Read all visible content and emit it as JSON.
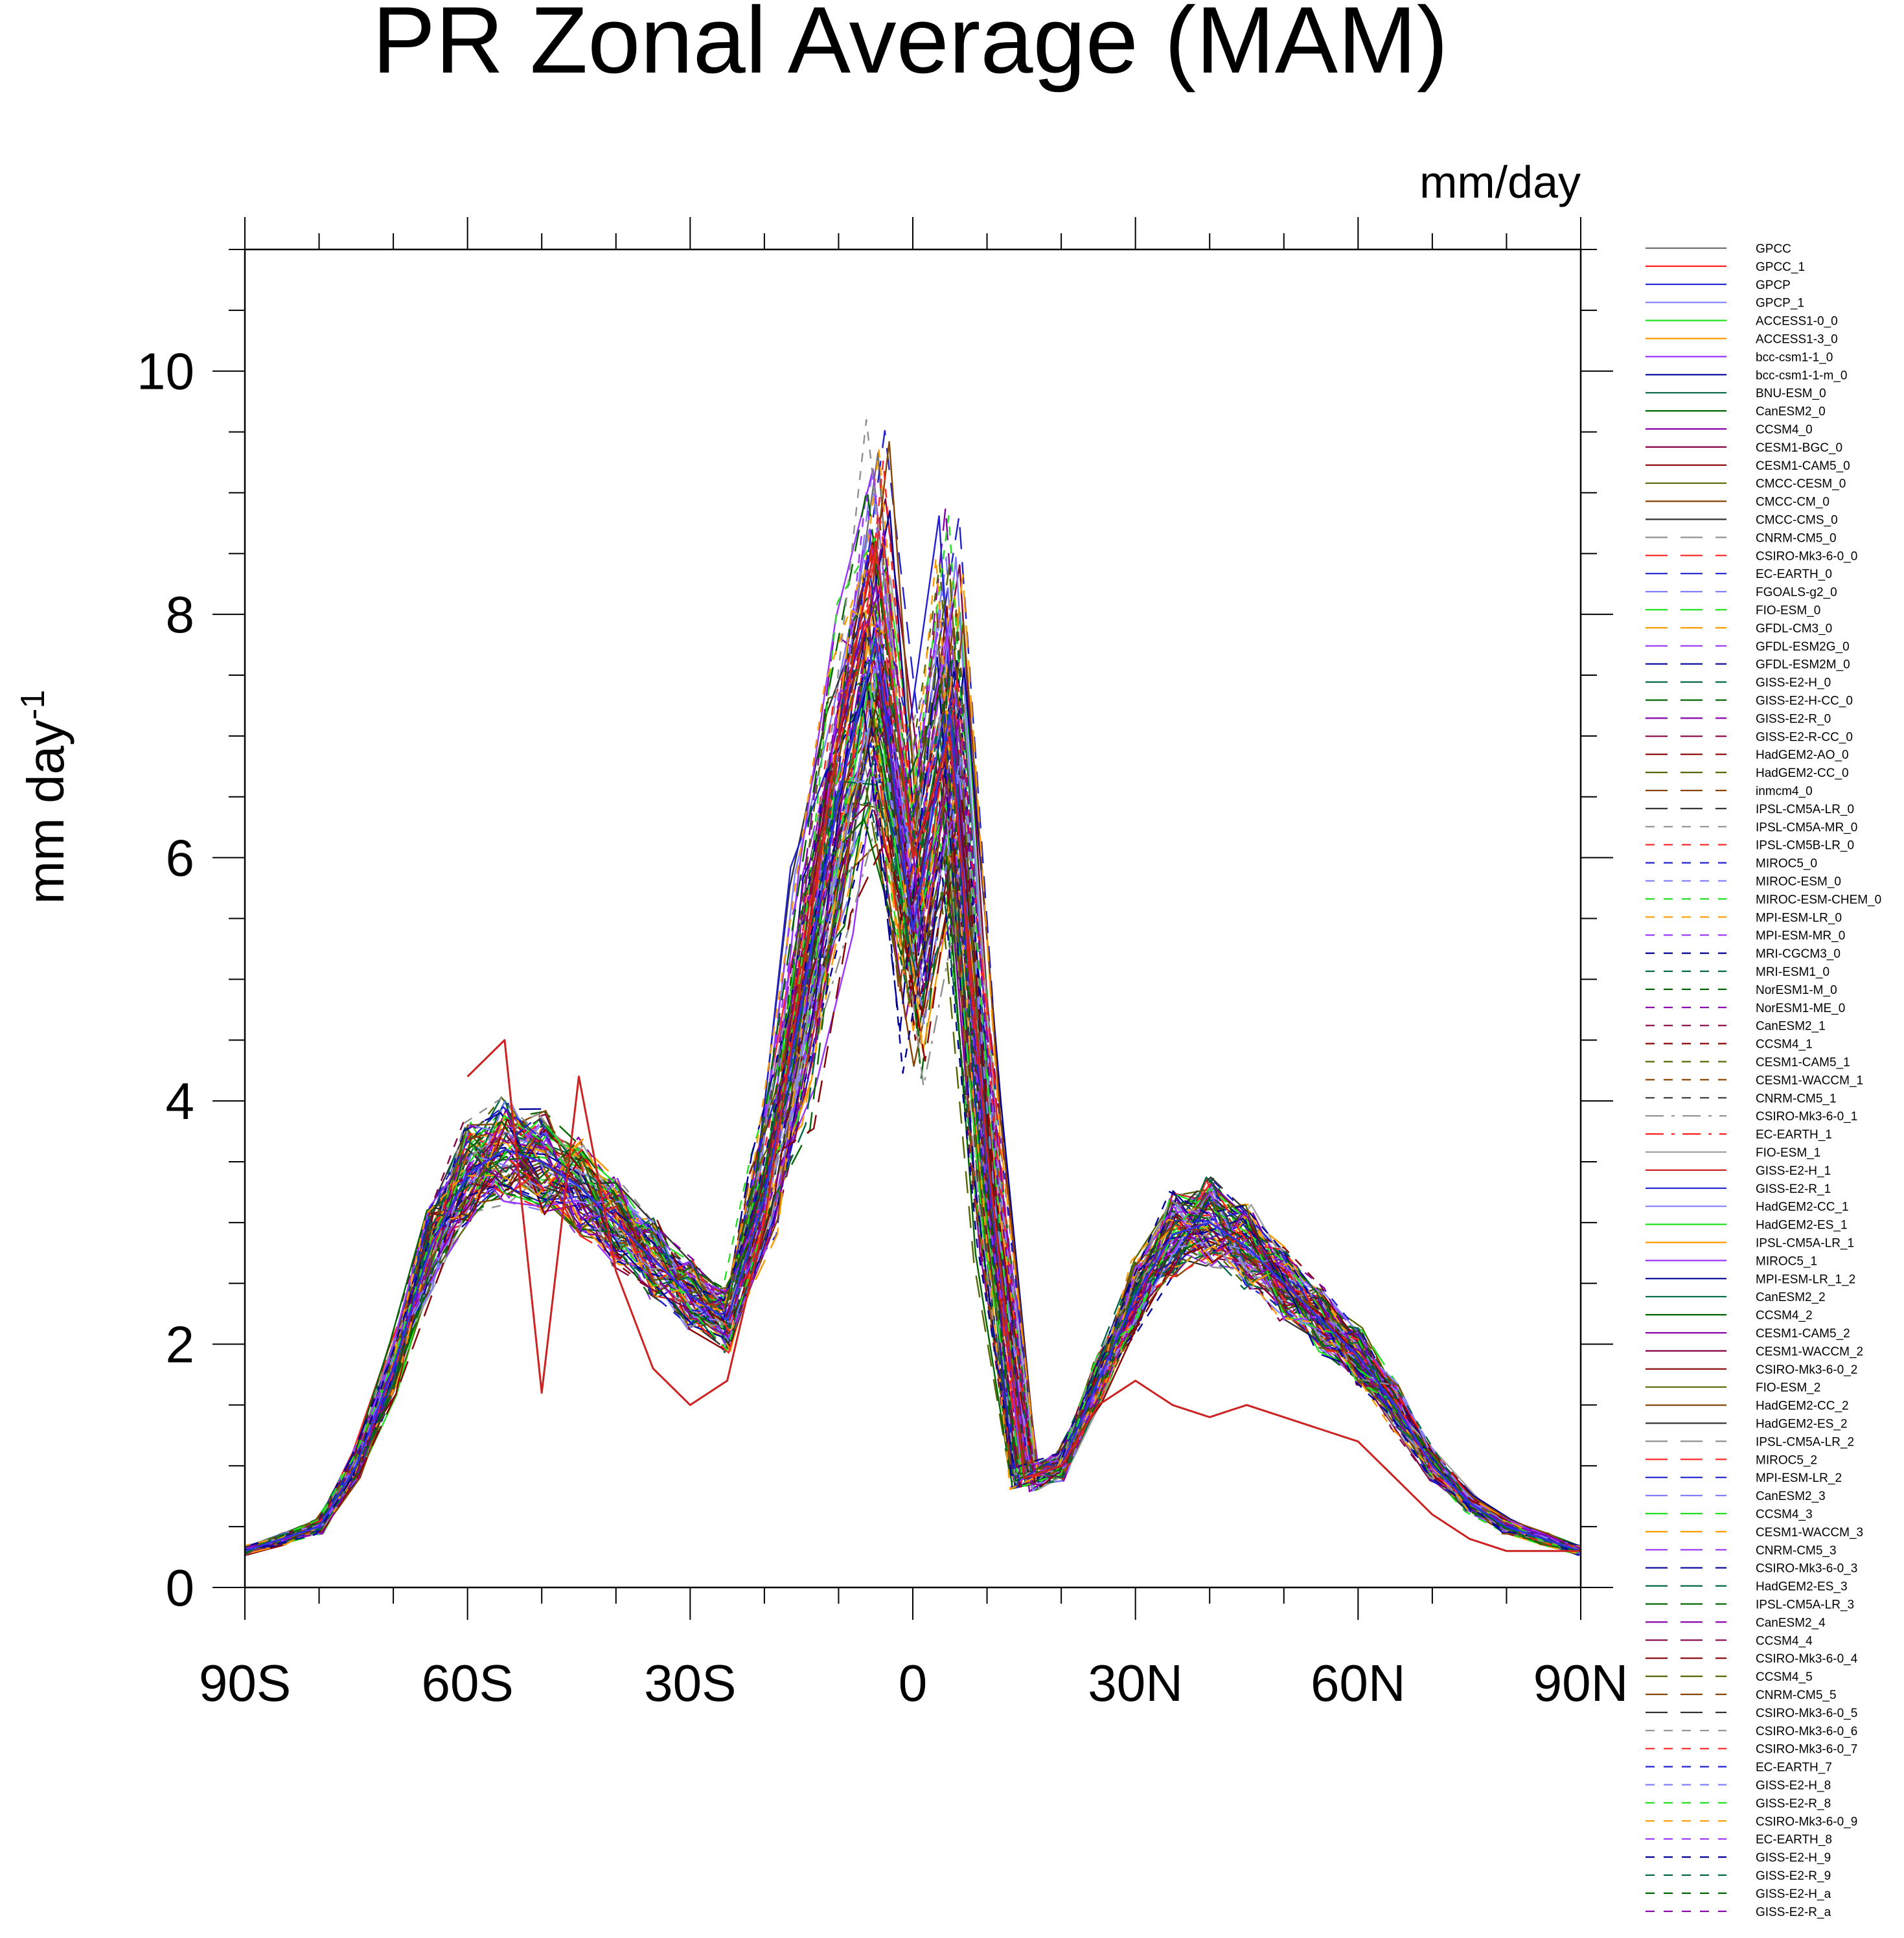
{
  "chart_data": {
    "type": "line",
    "title": "PR Zonal Average (MAM)",
    "units": "mm/day",
    "xlabel": "",
    "ylabel": "mm day",
    "ylabel_superscript": "-1",
    "xlim": [
      -90,
      90
    ],
    "ylim": [
      0,
      11
    ],
    "grid": false,
    "legend_position": "right",
    "x_ticks": [
      {
        "value": -90,
        "label": "90S"
      },
      {
        "value": -60,
        "label": "60S"
      },
      {
        "value": -30,
        "label": "30S"
      },
      {
        "value": 0,
        "label": "0"
      },
      {
        "value": 30,
        "label": "30N"
      },
      {
        "value": 60,
        "label": "60N"
      },
      {
        "value": 90,
        "label": "90N"
      }
    ],
    "y_ticks": [
      {
        "value": 0,
        "label": "0"
      },
      {
        "value": 2,
        "label": "2"
      },
      {
        "value": 4,
        "label": "4"
      },
      {
        "value": 6,
        "label": "6"
      },
      {
        "value": 8,
        "label": "8"
      },
      {
        "value": 10,
        "label": "10"
      }
    ],
    "reference_lat": [
      -90,
      -85,
      -80,
      -75,
      -70,
      -65,
      -60,
      -55,
      -50,
      -45,
      -40,
      -35,
      -30,
      -25,
      -20,
      -15,
      -10,
      -5,
      0,
      5,
      10,
      15,
      20,
      25,
      30,
      35,
      40,
      45,
      50,
      55,
      60,
      65,
      70,
      75,
      80,
      85,
      90
    ],
    "reference_series": [
      {
        "name": "GPCP",
        "color": "#3333dd",
        "dash": "solid",
        "width": 3,
        "values": [
          0.3,
          0.4,
          0.5,
          1.0,
          1.8,
          2.8,
          3.4,
          3.6,
          3.5,
          3.3,
          3.0,
          2.7,
          2.4,
          2.2,
          3.2,
          4.8,
          6.5,
          7.8,
          5.4,
          7.2,
          3.5,
          0.9,
          1.0,
          1.7,
          2.4,
          2.9,
          3.0,
          2.8,
          2.5,
          2.2,
          1.9,
          1.5,
          1.0,
          0.7,
          0.5,
          0.4,
          0.3
        ]
      },
      {
        "name": "GPCC",
        "color": "#cc2222",
        "dash": "solid",
        "width": 3,
        "values": [
          null,
          null,
          null,
          null,
          null,
          null,
          4.2,
          4.5,
          1.6,
          4.2,
          2.6,
          1.8,
          1.5,
          1.7,
          3.0,
          5.0,
          7.0,
          8.6,
          6.0,
          7.0,
          3.6,
          0.9,
          1.0,
          1.5,
          1.7,
          1.5,
          1.4,
          1.5,
          1.4,
          1.3,
          1.2,
          0.9,
          0.6,
          0.4,
          0.3,
          0.3,
          0.3
        ]
      }
    ],
    "series": [
      {
        "name": "GPCC",
        "color": "#707070",
        "dash": "solid"
      },
      {
        "name": "GPCC_1",
        "color": "#ff2020",
        "dash": "solid"
      },
      {
        "name": "GPCP",
        "color": "#2020d0",
        "dash": "solid"
      },
      {
        "name": "GPCP_1",
        "color": "#8080ff",
        "dash": "solid"
      },
      {
        "name": "ACCESS1-0_0",
        "color": "#20e020",
        "dash": "solid"
      },
      {
        "name": "ACCESS1-3_0",
        "color": "#ff9900",
        "dash": "solid"
      },
      {
        "name": "bcc-csm1-1_0",
        "color": "#9933ff",
        "dash": "solid"
      },
      {
        "name": "bcc-csm1-1-m_0",
        "color": "#000099",
        "dash": "solid"
      },
      {
        "name": "BNU-ESM_0",
        "color": "#006644",
        "dash": "solid"
      },
      {
        "name": "CanESM2_0",
        "color": "#006600",
        "dash": "solid"
      },
      {
        "name": "CCSM4_0",
        "color": "#8800aa",
        "dash": "solid"
      },
      {
        "name": "CESM1-BGC_0",
        "color": "#880044",
        "dash": "solid"
      },
      {
        "name": "CESM1-CAM5_0",
        "color": "#880000",
        "dash": "solid"
      },
      {
        "name": "CMCC-CESM_0",
        "color": "#556600",
        "dash": "solid"
      },
      {
        "name": "CMCC-CM_0",
        "color": "#884400",
        "dash": "solid"
      },
      {
        "name": "CMCC-CMS_0",
        "color": "#333333",
        "dash": "solid"
      },
      {
        "name": "CNRM-CM5_0",
        "color": "#909090",
        "dash": "longdash"
      },
      {
        "name": "CSIRO-Mk3-6-0_0",
        "color": "#ff2020",
        "dash": "longdash"
      },
      {
        "name": "EC-EARTH_0",
        "color": "#2020d0",
        "dash": "longdash"
      },
      {
        "name": "FGOALS-g2_0",
        "color": "#8080ff",
        "dash": "longdash"
      },
      {
        "name": "FIO-ESM_0",
        "color": "#20e020",
        "dash": "longdash"
      },
      {
        "name": "GFDL-CM3_0",
        "color": "#ff9900",
        "dash": "longdash"
      },
      {
        "name": "GFDL-ESM2G_0",
        "color": "#9933ff",
        "dash": "longdash"
      },
      {
        "name": "GFDL-ESM2M_0",
        "color": "#000099",
        "dash": "longdash"
      },
      {
        "name": "GISS-E2-H_0",
        "color": "#006644",
        "dash": "longdash"
      },
      {
        "name": "GISS-E2-H-CC_0",
        "color": "#006600",
        "dash": "longdash"
      },
      {
        "name": "GISS-E2-R_0",
        "color": "#8800aa",
        "dash": "longdash"
      },
      {
        "name": "GISS-E2-R-CC_0",
        "color": "#880044",
        "dash": "longdash"
      },
      {
        "name": "HadGEM2-AO_0",
        "color": "#880000",
        "dash": "longdash"
      },
      {
        "name": "HadGEM2-CC_0",
        "color": "#556600",
        "dash": "longdash"
      },
      {
        "name": "inmcm4_0",
        "color": "#884400",
        "dash": "longdash"
      },
      {
        "name": "IPSL-CM5A-LR_0",
        "color": "#333333",
        "dash": "longdash"
      },
      {
        "name": "IPSL-CM5A-MR_0",
        "color": "#909090",
        "dash": "shortdash"
      },
      {
        "name": "IPSL-CM5B-LR_0",
        "color": "#ff2020",
        "dash": "shortdash"
      },
      {
        "name": "MIROC5_0",
        "color": "#2020d0",
        "dash": "shortdash"
      },
      {
        "name": "MIROC-ESM_0",
        "color": "#8080ff",
        "dash": "shortdash"
      },
      {
        "name": "MIROC-ESM-CHEM_0",
        "color": "#20e020",
        "dash": "shortdash"
      },
      {
        "name": "MPI-ESM-LR_0",
        "color": "#ff9900",
        "dash": "shortdash"
      },
      {
        "name": "MPI-ESM-MR_0",
        "color": "#9933ff",
        "dash": "shortdash"
      },
      {
        "name": "MRI-CGCM3_0",
        "color": "#000099",
        "dash": "shortdash"
      },
      {
        "name": "MRI-ESM1_0",
        "color": "#006644",
        "dash": "shortdash"
      },
      {
        "name": "NorESM1-M_0",
        "color": "#006600",
        "dash": "shortdash"
      },
      {
        "name": "NorESM1-ME_0",
        "color": "#8800aa",
        "dash": "shortdash"
      },
      {
        "name": "CanESM2_1",
        "color": "#880044",
        "dash": "shortdash"
      },
      {
        "name": "CCSM4_1",
        "color": "#880000",
        "dash": "shortdash"
      },
      {
        "name": "CESM1-CAM5_1",
        "color": "#556600",
        "dash": "shortdash"
      },
      {
        "name": "CESM1-WACCM_1",
        "color": "#884400",
        "dash": "shortdash"
      },
      {
        "name": "CNRM-CM5_1",
        "color": "#333333",
        "dash": "shortdash"
      },
      {
        "name": "CSIRO-Mk3-6-0_1",
        "color": "#909090",
        "dash": "dashdot"
      },
      {
        "name": "EC-EARTH_1",
        "color": "#ff2020",
        "dash": "dashdot"
      },
      {
        "name": "FIO-ESM_1",
        "color": "#a0a0a0",
        "dash": "solid"
      },
      {
        "name": "GISS-E2-H_1",
        "color": "#cc2222",
        "dash": "solid"
      },
      {
        "name": "GISS-E2-R_1",
        "color": "#2020d0",
        "dash": "solid"
      },
      {
        "name": "HadGEM2-CC_1",
        "color": "#8080ff",
        "dash": "solid"
      },
      {
        "name": "HadGEM2-ES_1",
        "color": "#20e020",
        "dash": "solid"
      },
      {
        "name": "IPSL-CM5A-LR_1",
        "color": "#ff9900",
        "dash": "solid"
      },
      {
        "name": "MIROC5_1",
        "color": "#9933ff",
        "dash": "solid"
      },
      {
        "name": "MPI-ESM-LR_1_2",
        "color": "#000099",
        "dash": "solid"
      },
      {
        "name": "CanESM2_2",
        "color": "#006644",
        "dash": "solid"
      },
      {
        "name": "CCSM4_2",
        "color": "#006600",
        "dash": "solid"
      },
      {
        "name": "CESM1-CAM5_2",
        "color": "#8800aa",
        "dash": "solid"
      },
      {
        "name": "CESM1-WACCM_2",
        "color": "#880044",
        "dash": "solid"
      },
      {
        "name": "CSIRO-Mk3-6-0_2",
        "color": "#880000",
        "dash": "solid"
      },
      {
        "name": "FIO-ESM_2",
        "color": "#556600",
        "dash": "solid"
      },
      {
        "name": "HadGEM2-CC_2",
        "color": "#884400",
        "dash": "solid"
      },
      {
        "name": "HadGEM2-ES_2",
        "color": "#333333",
        "dash": "solid"
      },
      {
        "name": "IPSL-CM5A-LR_2",
        "color": "#909090",
        "dash": "longdash"
      },
      {
        "name": "MIROC5_2",
        "color": "#ff2020",
        "dash": "longdash"
      },
      {
        "name": "MPI-ESM-LR_2",
        "color": "#2020d0",
        "dash": "longdash"
      },
      {
        "name": "CanESM2_3",
        "color": "#8080ff",
        "dash": "longdash"
      },
      {
        "name": "CCSM4_3",
        "color": "#20e020",
        "dash": "longdash"
      },
      {
        "name": "CESM1-WACCM_3",
        "color": "#ff9900",
        "dash": "longdash"
      },
      {
        "name": "CNRM-CM5_3",
        "color": "#9933ff",
        "dash": "longdash"
      },
      {
        "name": "CSIRO-Mk3-6-0_3",
        "color": "#000099",
        "dash": "longdash"
      },
      {
        "name": "HadGEM2-ES_3",
        "color": "#006644",
        "dash": "longdash"
      },
      {
        "name": "IPSL-CM5A-LR_3",
        "color": "#006600",
        "dash": "longdash"
      },
      {
        "name": "CanESM2_4",
        "color": "#8800aa",
        "dash": "longdash"
      },
      {
        "name": "CCSM4_4",
        "color": "#880044",
        "dash": "longdash"
      },
      {
        "name": "CSIRO-Mk3-6-0_4",
        "color": "#880000",
        "dash": "longdash"
      },
      {
        "name": "CCSM4_5",
        "color": "#556600",
        "dash": "longdash"
      },
      {
        "name": "CNRM-CM5_5",
        "color": "#884400",
        "dash": "longdash"
      },
      {
        "name": "CSIRO-Mk3-6-0_5",
        "color": "#333333",
        "dash": "longdash"
      },
      {
        "name": "CSIRO-Mk3-6-0_6",
        "color": "#909090",
        "dash": "shortdash"
      },
      {
        "name": "CSIRO-Mk3-6-0_7",
        "color": "#ff2020",
        "dash": "shortdash"
      },
      {
        "name": "EC-EARTH_7",
        "color": "#2020d0",
        "dash": "shortdash"
      },
      {
        "name": "GISS-E2-H_8",
        "color": "#8080ff",
        "dash": "shortdash"
      },
      {
        "name": "GISS-E2-R_8",
        "color": "#20e020",
        "dash": "shortdash"
      },
      {
        "name": "CSIRO-Mk3-6-0_9",
        "color": "#ff9900",
        "dash": "shortdash"
      },
      {
        "name": "EC-EARTH_8",
        "color": "#9933ff",
        "dash": "shortdash"
      },
      {
        "name": "GISS-E2-H_9",
        "color": "#000099",
        "dash": "shortdash"
      },
      {
        "name": "GISS-E2-R_9",
        "color": "#006644",
        "dash": "shortdash"
      },
      {
        "name": "GISS-E2-H_a",
        "color": "#006600",
        "dash": "shortdash"
      },
      {
        "name": "GISS-E2-R_a",
        "color": "#8800aa",
        "dash": "shortdash"
      }
    ]
  }
}
